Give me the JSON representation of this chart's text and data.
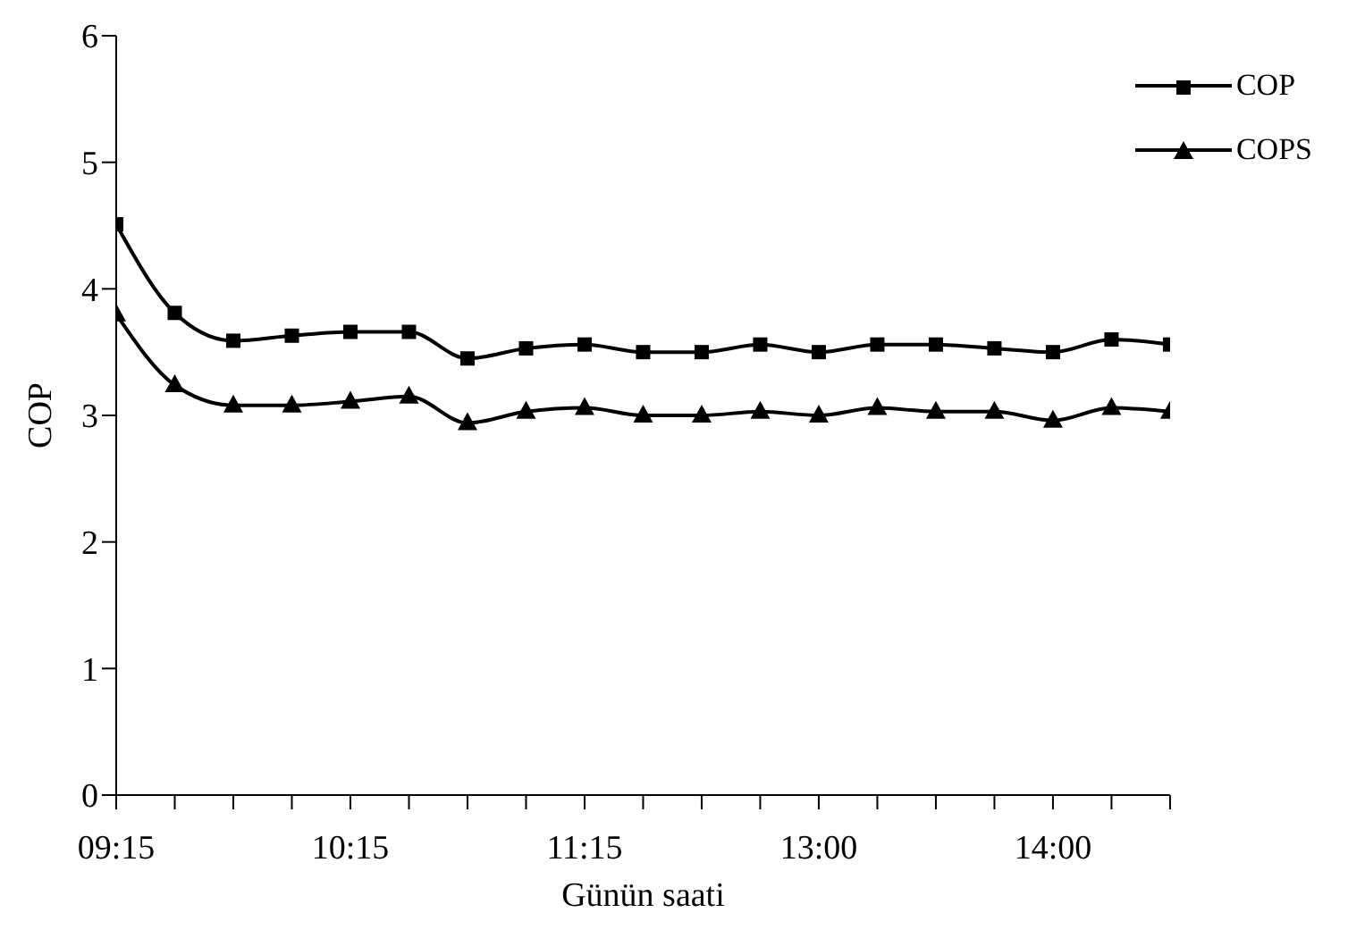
{
  "chart_data": {
    "type": "line",
    "xlabel": "Günün saati",
    "ylabel": "COP",
    "categories": [
      "09:15",
      null,
      null,
      null,
      "10:15",
      null,
      null,
      null,
      "11:15",
      null,
      null,
      null,
      "13:00",
      null,
      null,
      null,
      "14:00",
      null,
      null
    ],
    "ylim": [
      0,
      6
    ],
    "yticks": [
      0,
      1,
      2,
      3,
      4,
      5,
      6
    ],
    "grid": false,
    "legend": "top right",
    "line_style": "solid",
    "series": [
      {
        "name": "COP",
        "color": "#000000",
        "marker": "square",
        "values": [
          4.51,
          3.81,
          3.59,
          3.63,
          3.66,
          3.66,
          3.45,
          3.53,
          3.56,
          3.5,
          3.5,
          3.56,
          3.5,
          3.56,
          3.56,
          3.53,
          3.5,
          3.6,
          3.56
        ]
      },
      {
        "name": "COPS",
        "color": "#000000",
        "marker": "triangle",
        "values": [
          3.8,
          3.24,
          3.08,
          3.08,
          3.11,
          3.15,
          2.94,
          3.03,
          3.06,
          3.0,
          3.0,
          3.03,
          3.0,
          3.06,
          3.03,
          3.03,
          2.96,
          3.06,
          3.03
        ]
      }
    ]
  }
}
